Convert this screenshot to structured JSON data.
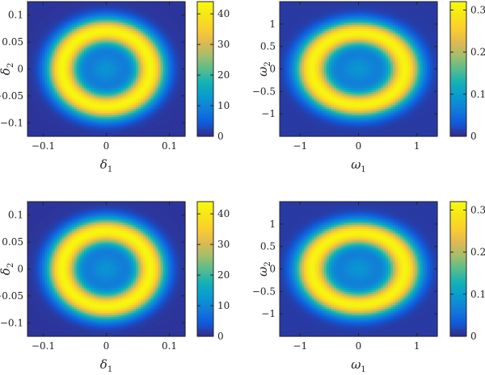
{
  "chart_data": [
    {
      "type": "heatmap",
      "title": "",
      "xlabel": {
        "symbol": "δ",
        "sub": "1"
      },
      "ylabel": {
        "symbol": "δ",
        "sub": "2"
      },
      "xlim": [
        -0.125,
        0.125
      ],
      "ylim": [
        -0.125,
        0.125
      ],
      "xticks": [
        -0.1,
        0,
        0.1
      ],
      "xtick_labels": [
        "−0.1",
        "0",
        "0.1"
      ],
      "yticks": [
        0.1,
        0.05,
        0,
        -0.05,
        -0.1
      ],
      "ytick_labels": [
        "0.1",
        "0.05",
        "0",
        "−0.05",
        "−0.1"
      ],
      "colorbar": {
        "min": 0,
        "max": 44,
        "ticks": [
          0,
          10,
          20,
          30,
          40
        ],
        "tick_labels": [
          "0",
          "10",
          "20",
          "30",
          "40"
        ]
      },
      "pattern": {
        "shape": "ring",
        "center": [
          0,
          0
        ],
        "peak_radius": 0.07,
        "peak_value": 43,
        "center_value": 12,
        "background_value": 1
      },
      "colormap": "parula"
    },
    {
      "type": "heatmap",
      "title": "",
      "xlabel": {
        "symbol": "ω",
        "sub": "1"
      },
      "ylabel": {
        "symbol": "ω",
        "sub": "2"
      },
      "xlim": [
        -1.35,
        1.35
      ],
      "ylim": [
        -1.5,
        1.5
      ],
      "xticks": [
        -1,
        0,
        1
      ],
      "xtick_labels": [
        "−1",
        "0",
        "1"
      ],
      "yticks": [
        1,
        0.5,
        0,
        -0.5,
        -1
      ],
      "ytick_labels": [
        "1",
        "0.5",
        "0",
        "−0.5",
        "−1"
      ],
      "colorbar": {
        "min": 0,
        "max": 0.32,
        "ticks": [
          0,
          0.1,
          0.2,
          0.3
        ],
        "tick_labels": [
          "0",
          "0.1",
          "0.2",
          "0.3"
        ]
      },
      "pattern": {
        "shape": "ring",
        "center": [
          0,
          0
        ],
        "peak_radius": 0.8,
        "peak_value": 0.31,
        "center_value": 0.09,
        "background_value": 0.01
      },
      "colormap": "parula"
    },
    {
      "type": "heatmap",
      "title": "",
      "xlabel": {
        "symbol": "δ",
        "sub": "1"
      },
      "ylabel": {
        "symbol": "δ",
        "sub": "2"
      },
      "xlim": [
        -0.125,
        0.125
      ],
      "ylim": [
        -0.125,
        0.125
      ],
      "xticks": [
        -0.1,
        0,
        0.1
      ],
      "xtick_labels": [
        "−0.1",
        "0",
        "0.1"
      ],
      "yticks": [
        0.1,
        0.05,
        0,
        -0.05,
        -0.1
      ],
      "ytick_labels": [
        "0.1",
        "0.05",
        "0",
        "−0.05",
        "−0.1"
      ],
      "colorbar": {
        "min": 0,
        "max": 44,
        "ticks": [
          0,
          10,
          20,
          30,
          40
        ],
        "tick_labels": [
          "0",
          "10",
          "20",
          "30",
          "40"
        ]
      },
      "pattern": {
        "shape": "ring",
        "center": [
          0,
          0
        ],
        "peak_radius": 0.07,
        "peak_value": 43,
        "center_value": 12,
        "background_value": 1
      },
      "colormap": "parula"
    },
    {
      "type": "heatmap",
      "title": "",
      "xlabel": {
        "symbol": "ω",
        "sub": "1"
      },
      "ylabel": {
        "symbol": "ω",
        "sub": "2"
      },
      "xlim": [
        -1.35,
        1.35
      ],
      "ylim": [
        -1.5,
        1.5
      ],
      "xticks": [
        -1,
        0,
        1
      ],
      "xtick_labels": [
        "−1",
        "0",
        "1"
      ],
      "yticks": [
        1,
        0.5,
        0,
        -0.5,
        -1
      ],
      "ytick_labels": [
        "1",
        "0.5",
        "0",
        "−0.5",
        "−1"
      ],
      "colorbar": {
        "min": 0,
        "max": 0.32,
        "ticks": [
          0,
          0.1,
          0.2,
          0.3
        ],
        "tick_labels": [
          "0",
          "0.1",
          "0.2",
          "0.3"
        ]
      },
      "pattern": {
        "shape": "ring",
        "center": [
          0,
          0
        ],
        "peak_radius": 0.8,
        "peak_value": 0.31,
        "center_value": 0.09,
        "background_value": 0.01
      },
      "colormap": "parula"
    }
  ]
}
